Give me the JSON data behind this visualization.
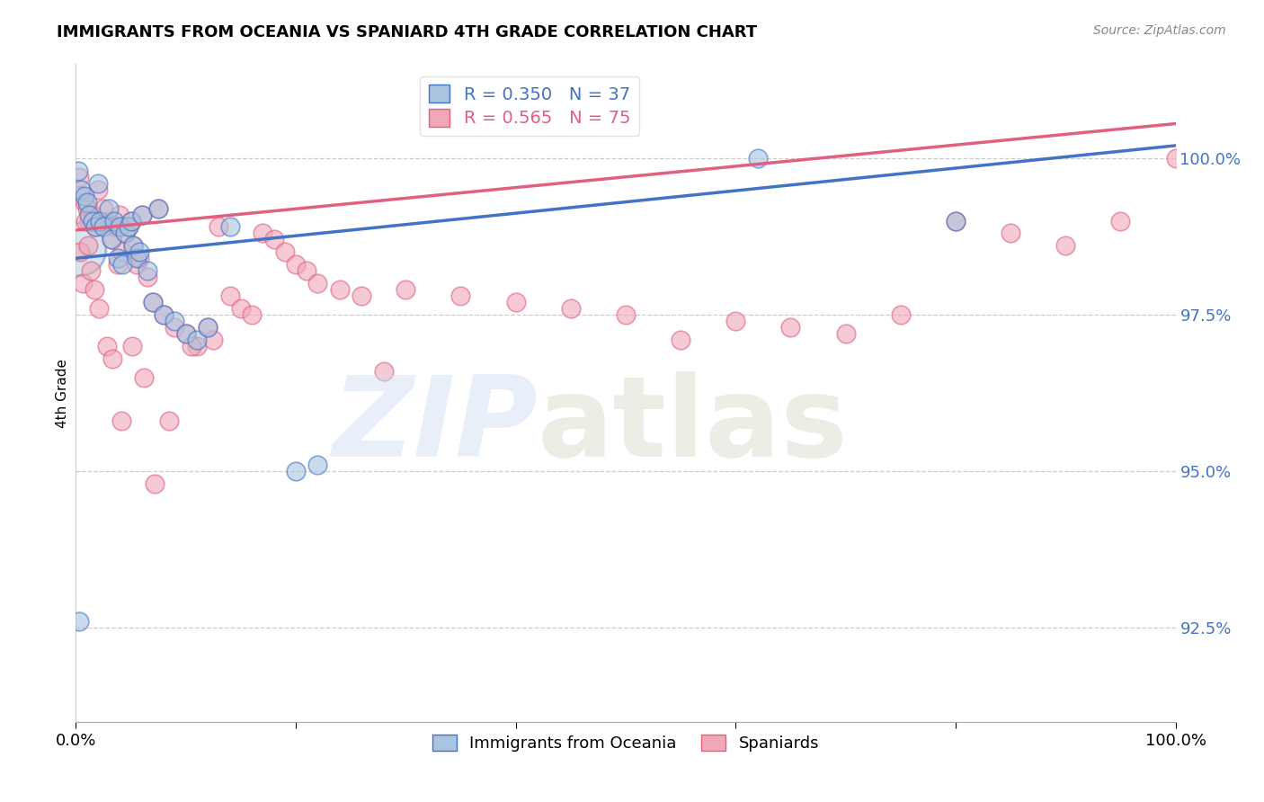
{
  "title": "IMMIGRANTS FROM OCEANIA VS SPANIARD 4TH GRADE CORRELATION CHART",
  "source": "Source: ZipAtlas.com",
  "ylabel": "4th Grade",
  "yticks": [
    92.5,
    95.0,
    97.5,
    100.0
  ],
  "ytick_labels": [
    "92.5%",
    "95.0%",
    "97.5%",
    "100.0%"
  ],
  "xlim": [
    0.0,
    100.0
  ],
  "ylim": [
    91.0,
    101.5
  ],
  "blue_R": 0.35,
  "blue_N": 37,
  "pink_R": 0.565,
  "pink_N": 75,
  "blue_fill_color": "#a8c4e0",
  "pink_fill_color": "#f0a8b8",
  "blue_line_color": "#4472c4",
  "pink_line_color": "#e06080",
  "legend_label_blue": "Immigrants from Oceania",
  "legend_label_pink": "Spaniards",
  "blue_trend_x": [
    0.0,
    100.0
  ],
  "blue_trend_y": [
    98.4,
    100.2
  ],
  "pink_trend_x": [
    0.0,
    100.0
  ],
  "pink_trend_y": [
    98.85,
    100.55
  ],
  "blue_points_x": [
    0.2,
    0.5,
    0.8,
    1.0,
    1.2,
    1.5,
    1.8,
    2.0,
    2.2,
    2.5,
    3.0,
    3.2,
    3.5,
    3.8,
    4.0,
    4.2,
    4.5,
    4.8,
    5.0,
    5.2,
    5.5,
    5.8,
    6.0,
    6.5,
    7.0,
    7.5,
    8.0,
    9.0,
    10.0,
    11.0,
    12.0,
    14.0,
    20.0,
    22.0,
    0.3,
    62.0,
    80.0
  ],
  "blue_points_y": [
    99.8,
    99.5,
    99.4,
    99.3,
    99.1,
    99.0,
    98.9,
    99.6,
    99.0,
    98.9,
    99.2,
    98.7,
    99.0,
    98.4,
    98.9,
    98.3,
    98.8,
    98.9,
    99.0,
    98.6,
    98.4,
    98.5,
    99.1,
    98.2,
    97.7,
    99.2,
    97.5,
    97.4,
    97.2,
    97.1,
    97.3,
    98.9,
    95.0,
    95.1,
    92.6,
    100.0,
    99.0
  ],
  "blue_sizes": [
    300,
    120,
    120,
    120,
    120,
    120,
    120,
    120,
    120,
    120,
    120,
    120,
    120,
    120,
    120,
    120,
    120,
    120,
    120,
    120,
    120,
    120,
    120,
    120,
    120,
    120,
    120,
    120,
    120,
    120,
    120,
    120,
    120,
    120,
    120,
    120,
    120
  ],
  "pink_points_x": [
    0.3,
    0.5,
    0.8,
    1.0,
    1.2,
    1.5,
    1.8,
    2.0,
    2.2,
    2.5,
    3.0,
    3.2,
    3.5,
    3.8,
    4.0,
    4.2,
    4.5,
    4.8,
    5.0,
    5.2,
    5.5,
    5.8,
    6.0,
    6.5,
    7.0,
    7.5,
    8.0,
    9.0,
    10.0,
    11.0,
    12.0,
    13.0,
    14.0,
    15.0,
    16.0,
    17.0,
    18.0,
    19.0,
    20.0,
    21.0,
    22.0,
    24.0,
    26.0,
    28.0,
    30.0,
    35.0,
    40.0,
    45.0,
    50.0,
    60.0,
    65.0,
    70.0,
    75.0,
    80.0,
    85.0,
    90.0,
    0.4,
    0.6,
    0.9,
    1.1,
    1.4,
    1.7,
    2.1,
    2.8,
    3.3,
    4.1,
    5.1,
    6.2,
    7.2,
    8.5,
    10.5,
    12.5,
    55.0,
    95.0,
    100.0
  ],
  "pink_points_y": [
    99.7,
    99.4,
    99.3,
    99.2,
    99.0,
    99.1,
    98.9,
    99.5,
    99.0,
    99.2,
    99.0,
    98.7,
    98.9,
    98.3,
    99.1,
    98.5,
    98.8,
    98.9,
    99.0,
    98.6,
    98.3,
    98.4,
    99.1,
    98.1,
    97.7,
    99.2,
    97.5,
    97.3,
    97.2,
    97.0,
    97.3,
    98.9,
    97.8,
    97.6,
    97.5,
    98.8,
    98.7,
    98.5,
    98.3,
    98.2,
    98.0,
    97.9,
    97.8,
    96.6,
    97.9,
    97.8,
    97.7,
    97.6,
    97.5,
    97.4,
    97.3,
    97.2,
    97.5,
    99.0,
    98.8,
    98.6,
    98.5,
    98.0,
    99.0,
    98.6,
    98.2,
    97.9,
    97.6,
    97.0,
    96.8,
    95.8,
    97.0,
    96.5,
    94.8,
    95.8,
    97.0,
    97.1,
    97.1,
    99.0,
    100.0
  ]
}
